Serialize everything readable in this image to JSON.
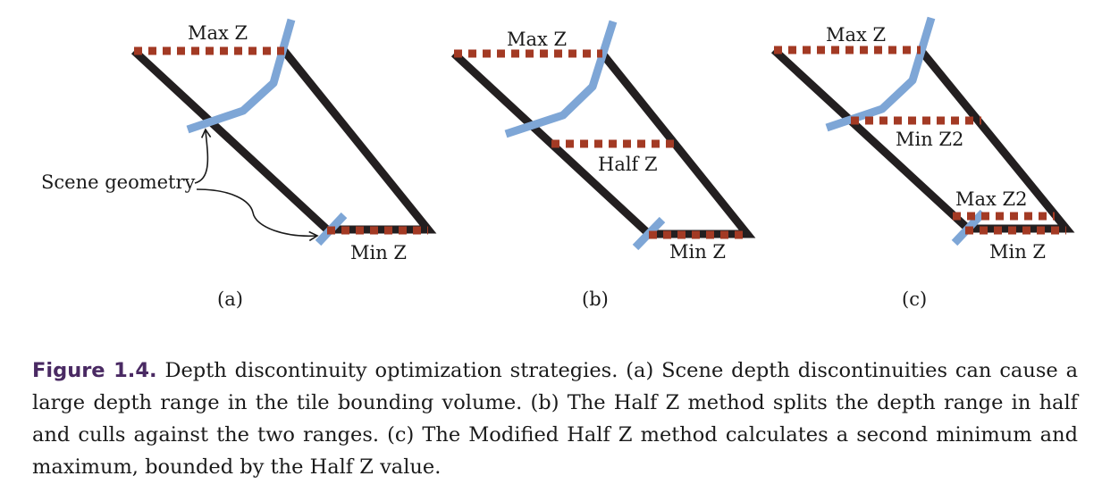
{
  "colors": {
    "frustum": "#231f20",
    "scene_geometry": "#7ea6d6",
    "depth_bound": "#a33a24",
    "caption_label": "#4a2a63"
  },
  "panels": {
    "a": {
      "tag": "(a)",
      "max_z": "Max Z",
      "min_z": "Min Z",
      "scene_geometry": "Scene geometry"
    },
    "b": {
      "tag": "(b)",
      "max_z": "Max Z",
      "half_z": "Half Z",
      "min_z": "Min Z"
    },
    "c": {
      "tag": "(c)",
      "max_z": "Max Z",
      "min_z2": "Min Z2",
      "max_z2": "Max Z2",
      "min_z": "Min Z"
    }
  },
  "caption": {
    "label": "Figure 1.4.",
    "text": "Depth discontinuity optimization strategies. (a) Scene depth discontinuities can cause a large depth range in the tile bounding volume. (b) The Half Z method splits the depth range in half and culls against the two ranges. (c) The Modified Half Z method calculates a second minimum and maximum, bounded by the Half Z value."
  }
}
